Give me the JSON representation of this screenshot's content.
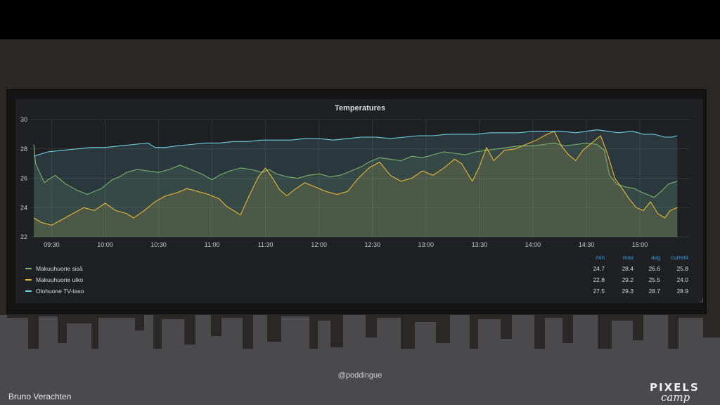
{
  "chart_data": {
    "type": "line",
    "title": "Temperatures",
    "xlabel": "",
    "ylabel": "",
    "x_ticks": [
      "09:30",
      "10:00",
      "10:30",
      "11:00",
      "11:30",
      "12:00",
      "12:30",
      "13:00",
      "13:30",
      "14:00",
      "14:30",
      "15:00"
    ],
    "y_ticks": [
      "22",
      "24",
      "26",
      "28",
      "30"
    ],
    "xlim": [
      "09:18",
      "15:28"
    ],
    "ylim": [
      22,
      30
    ],
    "grid": true,
    "legend_position": "bottom",
    "legend_headers": [
      "min",
      "max",
      "avg",
      "current"
    ],
    "series": [
      {
        "name": "Makuuhuone sisä",
        "color": "#7eb26d",
        "min": "24.7",
        "max": "28.4",
        "avg": "26.6",
        "current": "25.8",
        "points": [
          [
            "09:20",
            28.3
          ],
          [
            "09:21",
            27.0
          ],
          [
            "09:24",
            26.2
          ],
          [
            "09:26",
            25.7
          ],
          [
            "09:28",
            25.9
          ],
          [
            "09:32",
            26.2
          ],
          [
            "09:38",
            25.6
          ],
          [
            "09:44",
            25.2
          ],
          [
            "09:50",
            24.9
          ],
          [
            "09:54",
            25.1
          ],
          [
            "09:58",
            25.3
          ],
          [
            "10:04",
            25.9
          ],
          [
            "10:08",
            26.1
          ],
          [
            "10:12",
            26.4
          ],
          [
            "10:18",
            26.6
          ],
          [
            "10:24",
            26.5
          ],
          [
            "10:30",
            26.4
          ],
          [
            "10:36",
            26.6
          ],
          [
            "10:42",
            26.9
          ],
          [
            "10:48",
            26.6
          ],
          [
            "10:54",
            26.3
          ],
          [
            "11:00",
            25.9
          ],
          [
            "11:04",
            26.2
          ],
          [
            "11:10",
            26.5
          ],
          [
            "11:16",
            26.7
          ],
          [
            "11:22",
            26.6
          ],
          [
            "11:28",
            26.4
          ],
          [
            "11:32",
            26.6
          ],
          [
            "11:36",
            26.3
          ],
          [
            "11:42",
            26.1
          ],
          [
            "11:48",
            26.0
          ],
          [
            "11:54",
            26.2
          ],
          [
            "12:00",
            26.3
          ],
          [
            "12:06",
            26.1
          ],
          [
            "12:12",
            26.2
          ],
          [
            "12:18",
            26.5
          ],
          [
            "12:24",
            26.8
          ],
          [
            "12:28",
            27.1
          ],
          [
            "12:34",
            27.4
          ],
          [
            "12:40",
            27.3
          ],
          [
            "12:46",
            27.2
          ],
          [
            "12:52",
            27.5
          ],
          [
            "12:58",
            27.4
          ],
          [
            "13:04",
            27.6
          ],
          [
            "13:10",
            27.8
          ],
          [
            "13:16",
            27.7
          ],
          [
            "13:22",
            27.6
          ],
          [
            "13:28",
            27.8
          ],
          [
            "13:34",
            27.9
          ],
          [
            "13:40",
            28.0
          ],
          [
            "13:46",
            28.1
          ],
          [
            "13:52",
            28.2
          ],
          [
            "14:00",
            28.2
          ],
          [
            "14:06",
            28.3
          ],
          [
            "14:12",
            28.4
          ],
          [
            "14:18",
            28.2
          ],
          [
            "14:24",
            28.3
          ],
          [
            "14:30",
            28.4
          ],
          [
            "14:36",
            28.3
          ],
          [
            "14:40",
            27.9
          ],
          [
            "14:43",
            26.2
          ],
          [
            "14:47",
            25.6
          ],
          [
            "14:52",
            25.4
          ],
          [
            "14:57",
            25.3
          ],
          [
            "15:00",
            25.1
          ],
          [
            "15:04",
            24.9
          ],
          [
            "15:08",
            24.7
          ],
          [
            "15:12",
            25.1
          ],
          [
            "15:16",
            25.6
          ],
          [
            "15:21",
            25.8
          ]
        ]
      },
      {
        "name": "Makuuhuone ulko",
        "color": "#eab839",
        "min": "22.8",
        "max": "29.2",
        "avg": "25.5",
        "current": "24.0",
        "points": [
          [
            "09:20",
            23.3
          ],
          [
            "09:24",
            23.0
          ],
          [
            "09:30",
            22.8
          ],
          [
            "09:36",
            23.2
          ],
          [
            "09:42",
            23.6
          ],
          [
            "09:48",
            24.0
          ],
          [
            "09:54",
            23.8
          ],
          [
            "10:00",
            24.3
          ],
          [
            "10:06",
            23.8
          ],
          [
            "10:12",
            23.6
          ],
          [
            "10:16",
            23.3
          ],
          [
            "10:22",
            23.8
          ],
          [
            "10:28",
            24.4
          ],
          [
            "10:34",
            24.8
          ],
          [
            "10:40",
            25.0
          ],
          [
            "10:46",
            25.3
          ],
          [
            "10:52",
            25.1
          ],
          [
            "10:58",
            24.9
          ],
          [
            "11:04",
            24.6
          ],
          [
            "11:08",
            24.1
          ],
          [
            "11:12",
            23.8
          ],
          [
            "11:16",
            23.5
          ],
          [
            "11:20",
            24.6
          ],
          [
            "11:26",
            26.1
          ],
          [
            "11:30",
            26.7
          ],
          [
            "11:34",
            26.0
          ],
          [
            "11:38",
            25.2
          ],
          [
            "11:42",
            24.8
          ],
          [
            "11:46",
            25.2
          ],
          [
            "11:52",
            25.7
          ],
          [
            "11:58",
            25.4
          ],
          [
            "12:04",
            25.1
          ],
          [
            "12:10",
            24.9
          ],
          [
            "12:16",
            25.1
          ],
          [
            "12:22",
            26.0
          ],
          [
            "12:28",
            26.7
          ],
          [
            "12:34",
            27.1
          ],
          [
            "12:40",
            26.2
          ],
          [
            "12:46",
            25.8
          ],
          [
            "12:52",
            26.0
          ],
          [
            "12:58",
            26.5
          ],
          [
            "13:04",
            26.2
          ],
          [
            "13:10",
            26.7
          ],
          [
            "13:16",
            27.3
          ],
          [
            "13:20",
            27.0
          ],
          [
            "13:26",
            25.8
          ],
          [
            "13:30",
            26.8
          ],
          [
            "13:34",
            28.1
          ],
          [
            "13:38",
            27.2
          ],
          [
            "13:44",
            27.9
          ],
          [
            "13:50",
            28.0
          ],
          [
            "13:56",
            28.3
          ],
          [
            "14:02",
            28.6
          ],
          [
            "14:08",
            29.0
          ],
          [
            "14:12",
            29.2
          ],
          [
            "14:16",
            28.2
          ],
          [
            "14:20",
            27.6
          ],
          [
            "14:24",
            27.2
          ],
          [
            "14:28",
            27.9
          ],
          [
            "14:34",
            28.5
          ],
          [
            "14:38",
            28.9
          ],
          [
            "14:42",
            27.6
          ],
          [
            "14:46",
            26.0
          ],
          [
            "14:50",
            25.3
          ],
          [
            "14:54",
            24.6
          ],
          [
            "14:58",
            24.0
          ],
          [
            "15:02",
            23.8
          ],
          [
            "15:06",
            24.4
          ],
          [
            "15:10",
            23.6
          ],
          [
            "15:14",
            23.3
          ],
          [
            "15:17",
            23.8
          ],
          [
            "15:21",
            24.0
          ]
        ]
      },
      {
        "name": "Olohuone TV-taso",
        "color": "#6ed0e0",
        "min": "27.5",
        "max": "29.3",
        "avg": "28.7",
        "current": "28.9",
        "points": [
          [
            "09:20",
            27.5
          ],
          [
            "09:28",
            27.8
          ],
          [
            "09:36",
            27.9
          ],
          [
            "09:44",
            28.0
          ],
          [
            "09:52",
            28.1
          ],
          [
            "10:00",
            28.1
          ],
          [
            "10:08",
            28.2
          ],
          [
            "10:16",
            28.3
          ],
          [
            "10:24",
            28.4
          ],
          [
            "10:28",
            28.1
          ],
          [
            "10:34",
            28.1
          ],
          [
            "10:40",
            28.2
          ],
          [
            "10:48",
            28.3
          ],
          [
            "10:56",
            28.4
          ],
          [
            "11:04",
            28.4
          ],
          [
            "11:12",
            28.5
          ],
          [
            "11:20",
            28.5
          ],
          [
            "11:28",
            28.6
          ],
          [
            "11:36",
            28.6
          ],
          [
            "11:44",
            28.6
          ],
          [
            "11:52",
            28.7
          ],
          [
            "12:00",
            28.7
          ],
          [
            "12:08",
            28.6
          ],
          [
            "12:16",
            28.7
          ],
          [
            "12:24",
            28.8
          ],
          [
            "12:32",
            28.8
          ],
          [
            "12:40",
            28.7
          ],
          [
            "12:48",
            28.8
          ],
          [
            "12:56",
            28.9
          ],
          [
            "13:04",
            28.9
          ],
          [
            "13:12",
            29.0
          ],
          [
            "13:20",
            29.0
          ],
          [
            "13:28",
            29.0
          ],
          [
            "13:36",
            29.1
          ],
          [
            "13:44",
            29.1
          ],
          [
            "13:52",
            29.1
          ],
          [
            "14:00",
            29.2
          ],
          [
            "14:08",
            29.2
          ],
          [
            "14:16",
            29.2
          ],
          [
            "14:24",
            29.1
          ],
          [
            "14:30",
            29.2
          ],
          [
            "14:36",
            29.3
          ],
          [
            "14:42",
            29.2
          ],
          [
            "14:48",
            29.1
          ],
          [
            "14:56",
            29.2
          ],
          [
            "15:02",
            29.0
          ],
          [
            "15:08",
            29.0
          ],
          [
            "15:14",
            28.8
          ],
          [
            "15:18",
            28.8
          ],
          [
            "15:21",
            28.9
          ]
        ]
      }
    ]
  },
  "footer": {
    "handle": "@poddingue",
    "author": "Bruno Verachten",
    "logo_top": "PIXELS",
    "logo_bottom": "camp"
  }
}
